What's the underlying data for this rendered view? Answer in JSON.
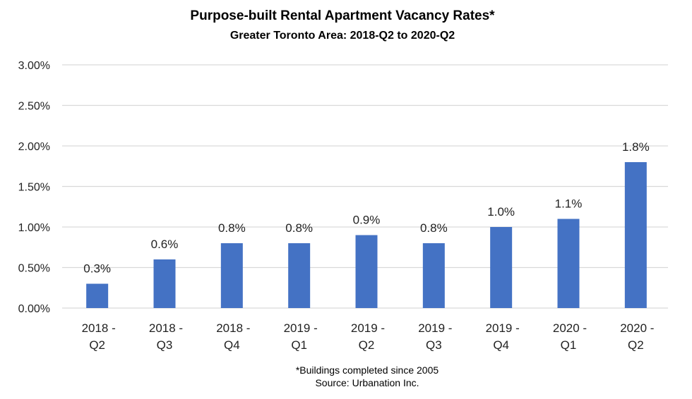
{
  "chart_data": {
    "type": "bar",
    "title": "Purpose-built Rental Apartment Vacancy Rates*",
    "subtitle": "Greater Toronto Area: 2018-Q2 to 2020-Q2",
    "categories": [
      [
        "2018 -",
        "Q2"
      ],
      [
        "2018 -",
        "Q3"
      ],
      [
        "2018 -",
        "Q4"
      ],
      [
        "2019 -",
        "Q1"
      ],
      [
        "2019 -",
        "Q2"
      ],
      [
        "2019 -",
        "Q3"
      ],
      [
        "2019 -",
        "Q4"
      ],
      [
        "2020 -",
        "Q1"
      ],
      [
        "2020 -",
        "Q2"
      ]
    ],
    "values": [
      0.3,
      0.6,
      0.8,
      0.8,
      0.9,
      0.8,
      1.0,
      1.1,
      1.8
    ],
    "data_labels": [
      "0.3%",
      "0.6%",
      "0.8%",
      "0.8%",
      "0.9%",
      "0.8%",
      "1.0%",
      "1.1%",
      "1.8%"
    ],
    "xlabel": "",
    "ylabel": "",
    "ylim": [
      0,
      3.0
    ],
    "yticks": [
      "0.00%",
      "0.50%",
      "1.00%",
      "1.50%",
      "2.00%",
      "2.50%",
      "3.00%"
    ],
    "grid": true,
    "legend": "none",
    "bar_color": "#4472C4",
    "footnote": "*Buildings completed since 2005",
    "source": "Source: Urbanation Inc."
  }
}
